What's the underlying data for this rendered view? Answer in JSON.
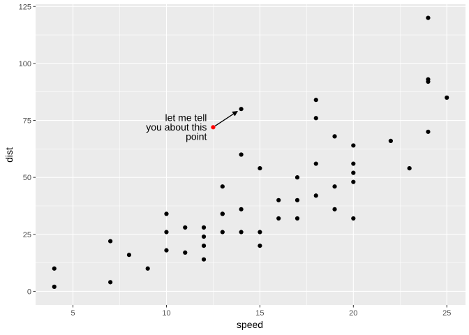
{
  "chart_data": {
    "type": "scatter",
    "title": "",
    "xlabel": "speed",
    "ylabel": "dist",
    "xlim": [
      3.0,
      26.0
    ],
    "ylim": [
      -6.0,
      126.0
    ],
    "x_ticks": [
      5,
      10,
      15,
      20,
      25
    ],
    "y_ticks": [
      0,
      25,
      50,
      75,
      100,
      125
    ],
    "x_tick_labels": [
      "5",
      "10",
      "15",
      "20",
      "25"
    ],
    "y_tick_labels": [
      "0",
      "25",
      "50",
      "75",
      "100",
      "125"
    ],
    "grid": true,
    "point_color": "#000000",
    "points": [
      [
        4,
        2
      ],
      [
        4,
        10
      ],
      [
        7,
        4
      ],
      [
        7,
        22
      ],
      [
        8,
        16
      ],
      [
        9,
        10
      ],
      [
        10,
        18
      ],
      [
        10,
        26
      ],
      [
        10,
        34
      ],
      [
        11,
        17
      ],
      [
        11,
        28
      ],
      [
        12,
        14
      ],
      [
        12,
        20
      ],
      [
        12,
        24
      ],
      [
        12,
        28
      ],
      [
        13,
        26
      ],
      [
        13,
        34
      ],
      [
        13,
        34
      ],
      [
        13,
        46
      ],
      [
        14,
        26
      ],
      [
        14,
        36
      ],
      [
        14,
        60
      ],
      [
        14,
        80
      ],
      [
        15,
        20
      ],
      [
        15,
        26
      ],
      [
        15,
        54
      ],
      [
        16,
        32
      ],
      [
        16,
        40
      ],
      [
        17,
        32
      ],
      [
        17,
        40
      ],
      [
        17,
        50
      ],
      [
        18,
        42
      ],
      [
        18,
        56
      ],
      [
        18,
        76
      ],
      [
        18,
        84
      ],
      [
        19,
        36
      ],
      [
        19,
        46
      ],
      [
        19,
        68
      ],
      [
        20,
        32
      ],
      [
        20,
        48
      ],
      [
        20,
        52
      ],
      [
        20,
        56
      ],
      [
        20,
        64
      ],
      [
        22,
        66
      ],
      [
        23,
        54
      ],
      [
        24,
        70
      ],
      [
        24,
        92
      ],
      [
        24,
        93
      ],
      [
        24,
        120
      ],
      [
        25,
        85
      ]
    ],
    "annotation": {
      "text_lines": [
        "let me tell",
        "you about this",
        "point"
      ],
      "point": [
        12.5,
        72
      ],
      "point_color": "#FF0000",
      "arrow_from": [
        12.5,
        72
      ],
      "arrow_to": [
        13.8,
        79
      ]
    }
  }
}
